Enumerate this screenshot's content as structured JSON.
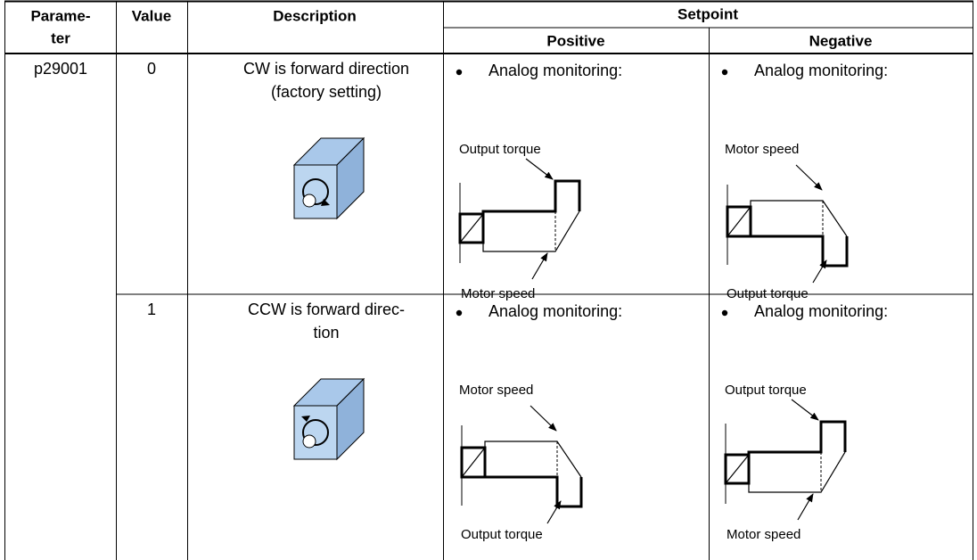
{
  "table": {
    "header": {
      "parameter": [
        "Parame-",
        "ter"
      ],
      "value": "Value",
      "description": "Description",
      "setpoint": "Setpoint",
      "positive": "Positive",
      "negative": "Negative"
    },
    "rows": [
      {
        "parameter": "p29001",
        "value": "0",
        "description": [
          "CW is forward direction",
          "(factory setting)"
        ],
        "positive": {
          "bullet": "Analog monitoring:",
          "top_label": "Output torque",
          "bottom_label": "Motor speed"
        },
        "negative": {
          "bullet": "Analog monitoring:",
          "top_label": "Motor speed",
          "bottom_label": "Output torque"
        }
      },
      {
        "value": "1",
        "description": [
          "CCW is forward direc-",
          "tion"
        ],
        "positive": {
          "bullet": "Analog monitoring:",
          "top_label": "Motor speed",
          "bottom_label": "Output torque"
        },
        "negative": {
          "bullet": "Analog monitoring:",
          "top_label": "Output torque",
          "bottom_label": "Motor speed"
        }
      }
    ]
  }
}
